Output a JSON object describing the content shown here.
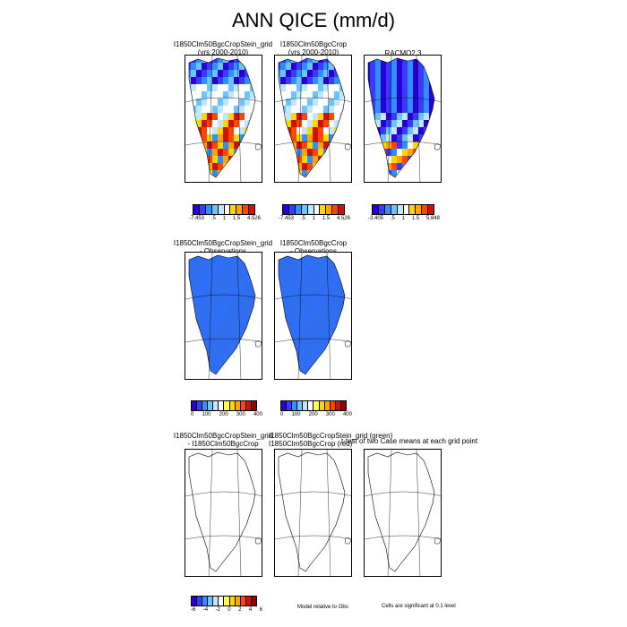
{
  "chart_data": {
    "type": "heatmap",
    "title": "ANN QICE (mm/d)",
    "panels": [
      {
        "title_line1": "I1850Clm50BgcCropStein_grid",
        "title_line2": "(yrs 2000-2010)",
        "scheme": "diverge_a"
      },
      {
        "title_line1": "I1850Clm50BgcCrop",
        "title_line2": "(yrs 2000-2010)",
        "scheme": "diverge_a"
      },
      {
        "title_line1": "RACMO2.3",
        "title_line2": "",
        "scheme": "diverge_b"
      },
      {
        "title_line1": "I1850Clm50BgcCropStein_grid",
        "title_line2": "- Observations",
        "scheme": "uniform"
      },
      {
        "title_line1": "I1850Clm50BgcCrop",
        "title_line2": "- Observations",
        "scheme": "uniform"
      },
      {
        "title_line1": "I1850Clm50BgcCropStein_grid",
        "title_line2": "- I1850Clm50BgcCrop",
        "scheme": "outline"
      },
      {
        "title_line1": "I1850Clm50BgcCropStein_grid (green)",
        "title_line2": "I1850Clm50BgcCrop (red)",
        "scheme": "outline"
      },
      {
        "title_line1": "t-test of two Case means at each grid point",
        "title_line2": "",
        "scheme": "outline"
      }
    ],
    "colorbars": [
      {
        "labels": [
          "-7.453",
          ".5",
          "1",
          "1.5",
          "4.526"
        ]
      },
      {
        "labels": [
          "-7.453",
          ".5",
          "1",
          "1.5",
          "4.526"
        ]
      },
      {
        "labels": [
          "-3.405",
          ".5",
          "1",
          "1.5",
          "5.848"
        ]
      },
      {
        "labels": [
          "0",
          "100",
          "200",
          "300",
          "400"
        ]
      },
      {
        "labels": [
          "0",
          "100",
          "200",
          "300",
          "400"
        ]
      },
      {
        "labels": [
          "-6",
          "-4",
          "-2",
          "0",
          "2",
          "4",
          "6"
        ]
      }
    ],
    "notes": {
      "model_relative": "Model relative to Obs",
      "significance": "Cells are significant at 0.1 level"
    },
    "palettes": {
      "diverge_a": [
        "#2a00d6",
        "#3a3aff",
        "#2f8fff",
        "#6ac5ff",
        "#bfe8ff",
        "#ffffff",
        "#ffd700",
        "#ffa500",
        "#ff4500",
        "#cc1111"
      ],
      "diverge_b": [
        "#2a00d6",
        "#3a3aff",
        "#2f8fff",
        "#6ac5ff",
        "#bfe8ff",
        "#ffffff",
        "#ffd700",
        "#ffa500",
        "#ff4500",
        "#cc1111"
      ],
      "sequential": [
        "#2a00d6",
        "#3a3aff",
        "#2f8fff",
        "#6ac5ff",
        "#bfe8ff",
        "#ffffff",
        "#ffff55",
        "#ffd700",
        "#ffa500",
        "#ff4500",
        "#cc1111",
        "#990000"
      ],
      "diff": [
        "#2a00d6",
        "#3a3aff",
        "#2f8fff",
        "#6ac5ff",
        "#bfe8ff",
        "#ffffff",
        "#ffff55",
        "#ffd700",
        "#ffa500",
        "#ff4500",
        "#cc1111",
        "#990000"
      ]
    }
  }
}
